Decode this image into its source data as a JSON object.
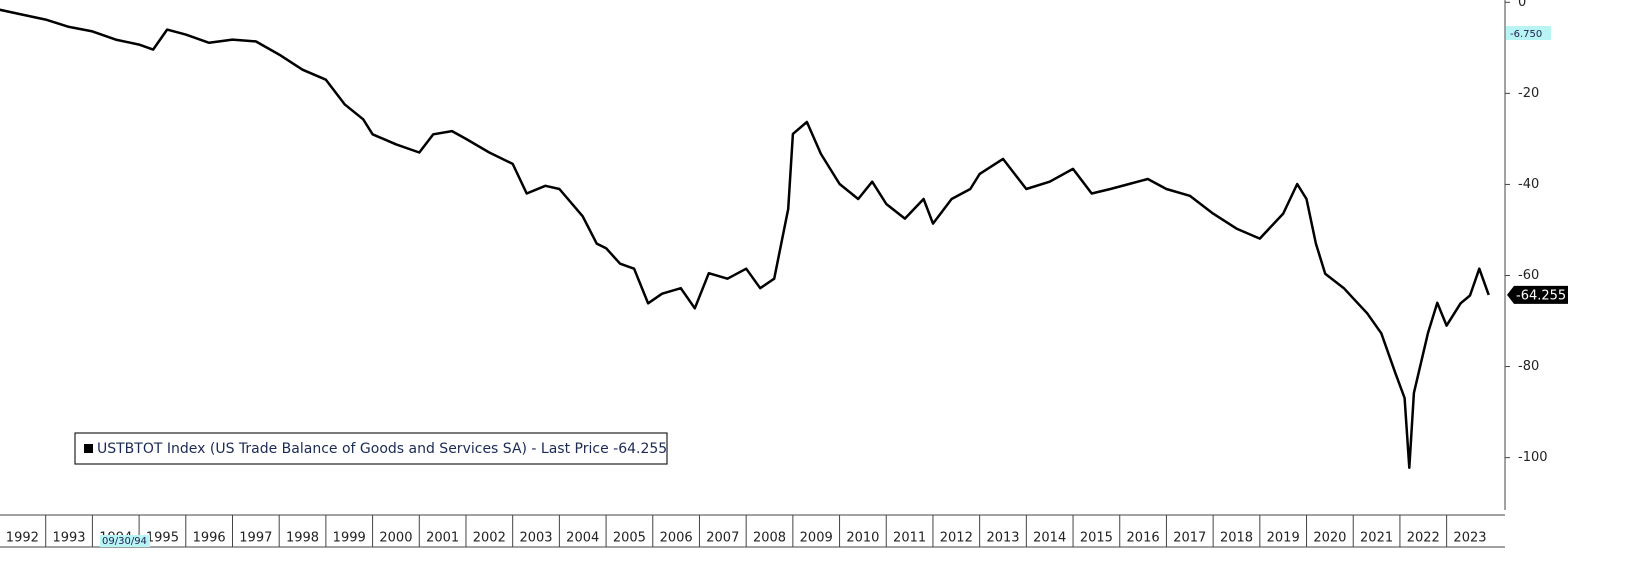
{
  "chart_data": {
    "type": "line",
    "series": [
      {
        "name": "USTBTOT Index (US Trade Balance of Goods and Services SA) - Last Price -64.255",
        "color": "#000000",
        "x": [
          1992.0,
          1992.5,
          1993.0,
          1993.5,
          1994.0,
          1994.5,
          1995.0,
          1995.3,
          1995.6,
          1996.0,
          1996.5,
          1997.0,
          1997.5,
          1998.0,
          1998.5,
          1999.0,
          1999.4,
          1999.8,
          2000.0,
          2000.5,
          2001.0,
          2001.3,
          2001.7,
          2002.0,
          2002.5,
          2003.0,
          2003.3,
          2003.7,
          2004.0,
          2004.5,
          2004.8,
          2005.0,
          2005.3,
          2005.6,
          2005.9,
          2006.2,
          2006.6,
          2006.9,
          2007.2,
          2007.6,
          2008.0,
          2008.3,
          2008.6,
          2008.9,
          2009.0,
          2009.3,
          2009.6,
          2010.0,
          2010.4,
          2010.7,
          2011.0,
          2011.4,
          2011.8,
          2012.0,
          2012.4,
          2012.8,
          2013.0,
          2013.5,
          2014.0,
          2014.5,
          2015.0,
          2015.4,
          2015.8,
          2016.2,
          2016.6,
          2017.0,
          2017.5,
          2018.0,
          2018.5,
          2019.0,
          2019.5,
          2019.8,
          2020.0,
          2020.2,
          2020.4,
          2020.8,
          2021.0,
          2021.3,
          2021.6,
          2021.9,
          2022.1,
          2022.2,
          2022.3,
          2022.6,
          2022.8,
          2023.0,
          2023.3,
          2023.5,
          2023.7,
          2023.9
        ],
        "values": [
          -1.6,
          -2.7,
          -3.8,
          -5.4,
          -6.4,
          -8.2,
          -9.3,
          -10.4,
          -6,
          -7.1,
          -8.9,
          -8.2,
          -8.6,
          -11.5,
          -14.8,
          -17,
          -22.4,
          -25.7,
          -29,
          -31.2,
          -33,
          -29,
          -28.3,
          -30,
          -33,
          -35.5,
          -42,
          -40.3,
          -41,
          -47,
          -53,
          -54,
          -57.4,
          -58.5,
          -66.1,
          -64,
          -62.8,
          -67.2,
          -59.5,
          -60.7,
          -58.5,
          -62.8,
          -60.7,
          -45.4,
          -28.9,
          -26.3,
          -33.3,
          -39.9,
          -43.2,
          -39.4,
          -44.3,
          -47.5,
          -43.2,
          -48.6,
          -43.2,
          -41,
          -37.7,
          -34.4,
          -41,
          -39.4,
          -36.6,
          -42,
          -41,
          -39.9,
          -38.8,
          -41,
          -42.5,
          -46.4,
          -49.7,
          -51.9,
          -46.4,
          -39.9,
          -43.2,
          -53,
          -59.6,
          -62.8,
          -65,
          -68.3,
          -72.7,
          -81.4,
          -86.9,
          -102.2,
          -85.8,
          -72.7,
          -66,
          -71,
          -66.1,
          -64.4,
          -58.5,
          -64.255
        ]
      }
    ],
    "xlim": [
      1992,
      2024.25
    ],
    "xticks": [
      1992,
      1993,
      1994,
      1995,
      1996,
      1997,
      1998,
      1999,
      2000,
      2001,
      2002,
      2003,
      2004,
      2005,
      2006,
      2007,
      2008,
      2009,
      2010,
      2011,
      2012,
      2013,
      2014,
      2015,
      2016,
      2017,
      2018,
      2019,
      2020,
      2021,
      2022,
      2023
    ],
    "ylim": [
      -111.5,
      0.5
    ],
    "yticks": [
      0,
      -20,
      -40,
      -60,
      -80,
      -100
    ],
    "cursor": {
      "value": -6.75,
      "label": "-6.750",
      "date": "09/30/94"
    }
  }
}
